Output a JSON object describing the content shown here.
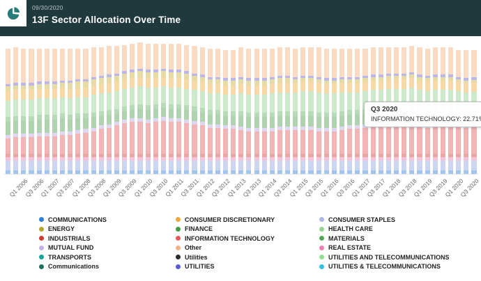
{
  "header": {
    "date": "09/30/2020",
    "title": "13F Sector Allocation Over Time"
  },
  "tooltip": {
    "title": "Q3 2020",
    "line": "INFORMATION TECHNOLOGY: 22.71%"
  },
  "colors": {
    "header_bg": "#20393d",
    "accent_teal": "#2a7c7c"
  },
  "legend": {
    "position": "bottom",
    "items": [
      {
        "label": "COMMUNICATIONS",
        "color": "#2f7ed8"
      },
      {
        "label": "ENERGY",
        "color": "#b8a432"
      },
      {
        "label": "INDUSTRIALS",
        "color": "#cc3b33"
      },
      {
        "label": "MUTUAL FUND",
        "color": "#c3b1e1"
      },
      {
        "label": "TRANSPORTS",
        "color": "#18a39b"
      },
      {
        "label": "Communications",
        "color": "#1d6f5e"
      },
      {
        "label": "CONSUMER DISCRETIONARY",
        "color": "#efa93c"
      },
      {
        "label": "FINANCE",
        "color": "#3f9e3f"
      },
      {
        "label": "INFORMATION TECHNOLOGY",
        "color": "#e3595c"
      },
      {
        "label": "Other",
        "color": "#f4b183"
      },
      {
        "label": "Utilities",
        "color": "#2b2b2b"
      },
      {
        "label": "UTILITIES",
        "color": "#5b5bd6"
      },
      {
        "label": "CONSUMER STAPLES",
        "color": "#aab9e8"
      },
      {
        "label": "HEALTH CARE",
        "color": "#93d693"
      },
      {
        "label": "MATERIALS",
        "color": "#54a854"
      },
      {
        "label": "REAL ESTATE",
        "color": "#ef7fb2"
      },
      {
        "label": "UTILITIES AND TELECOMMUNICATIONS",
        "color": "#8fe08f"
      },
      {
        "label": "UTILITIES & TELECOMMUNICATIONS",
        "color": "#2fc1e0"
      }
    ]
  },
  "chart_data": {
    "type": "bar",
    "stacked": true,
    "unit": "percent",
    "ylim": [
      0,
      100
    ],
    "grid": false,
    "legend_position": "bottom",
    "title": "13F Sector Allocation Over Time",
    "xlabel": "",
    "ylabel": "",
    "highlight": {
      "category": "Q3 2020",
      "series": "INFORMATION TECHNOLOGY",
      "value": 22.71
    },
    "categories": [
      "Q3 2005",
      "Q4 2005",
      "Q1 2006",
      "Q2 2006",
      "Q3 2006",
      "Q4 2006",
      "Q1 2007",
      "Q2 2007",
      "Q3 2007",
      "Q4 2007",
      "Q1 2008",
      "Q2 2008",
      "Q3 2008",
      "Q4 2008",
      "Q1 2009",
      "Q2 2009",
      "Q3 2009",
      "Q4 2009",
      "Q1 2010",
      "Q2 2010",
      "Q3 2010",
      "Q4 2010",
      "Q1 2011",
      "Q2 2011",
      "Q3 2011",
      "Q4 2011",
      "Q1 2012",
      "Q2 2012",
      "Q3 2012",
      "Q4 2012",
      "Q1 2013",
      "Q2 2013",
      "Q3 2013",
      "Q4 2013",
      "Q1 2014",
      "Q2 2014",
      "Q3 2014",
      "Q4 2014",
      "Q1 2015",
      "Q2 2015",
      "Q3 2015",
      "Q4 2015",
      "Q1 2016",
      "Q2 2016",
      "Q3 2016",
      "Q4 2016",
      "Q1 2017",
      "Q2 2017",
      "Q3 2017",
      "Q4 2017",
      "Q1 2018",
      "Q2 2018",
      "Q3 2018",
      "Q4 2018",
      "Q1 2019",
      "Q2 2019",
      "Q3 2019",
      "Q4 2019",
      "Q1 2020",
      "Q2 2020",
      "Q3 2020"
    ],
    "x_tick_labels": [
      "Q1 2006",
      "Q3 2006",
      "Q1 2007",
      "Q3 2007",
      "Q1 2008",
      "Q3 2008",
      "Q1 2009",
      "Q3 2009",
      "Q1 2010",
      "Q3 2010",
      "Q1 2011",
      "Q3 2011",
      "Q1 2012",
      "Q3 2012",
      "Q1 2013",
      "Q3 2013",
      "Q1 2014",
      "Q3 2014",
      "Q1 2015",
      "Q3 2015",
      "Q1 2016",
      "Q3 2016",
      "Q1 2017",
      "Q3 2017",
      "Q1 2018",
      "Q3 2018",
      "Q1 2019",
      "Q3 2019",
      "Q1 2020",
      "Q3 2020"
    ],
    "series": [
      {
        "name": "COMMUNICATIONS",
        "color": "#2f7ed8",
        "constant": 3
      },
      {
        "name": "CONSUMER STAPLES",
        "color": "#8fa3e0",
        "constant": 8
      },
      {
        "name": "REAL ESTATE",
        "color": "#e87ab0",
        "constant": 3
      },
      {
        "name": "INDUSTRIALS",
        "color": "#cc4037",
        "constant": 3
      },
      {
        "name": "INFORMATION TECHNOLOGY",
        "color": "#e3595c",
        "values": [
          13,
          14,
          14,
          14,
          15,
          15,
          15,
          16,
          16,
          17,
          18,
          19,
          21,
          22,
          24,
          26,
          27,
          27,
          26,
          27,
          28,
          27,
          27,
          26,
          25,
          24,
          22,
          22,
          21,
          21,
          20,
          19,
          19,
          19,
          19,
          20,
          20,
          20,
          20,
          20,
          19,
          19,
          19,
          20,
          21,
          21,
          22,
          23,
          23,
          24,
          24,
          24,
          25,
          23,
          22,
          23,
          23,
          23,
          23,
          22,
          22.71
        ]
      },
      {
        "name": "MUTUAL FUND",
        "color": "#b9a6e0",
        "constant": 3
      },
      {
        "name": "FINANCE",
        "color": "#4d9e4d",
        "values": [
          11,
          11,
          11,
          11,
          11,
          11,
          11,
          11,
          10,
          10,
          9,
          9,
          8,
          8,
          7,
          7,
          7,
          8,
          8,
          8,
          8,
          8,
          8,
          8,
          8,
          8,
          8,
          8,
          8,
          8,
          9,
          9,
          9,
          9,
          9,
          9,
          9,
          9,
          9,
          9,
          9,
          9,
          9,
          9,
          9,
          9,
          9,
          9,
          9,
          9,
          9,
          9,
          9,
          9,
          9,
          9,
          9,
          9,
          8,
          8,
          8
        ]
      },
      {
        "name": "MATERIALS",
        "color": "#5fae5f",
        "constant": 4
      },
      {
        "name": "HEALTH CARE",
        "color": "#8ecf8e",
        "values": [
          14,
          14,
          14,
          14,
          14,
          14,
          14,
          14,
          14,
          14,
          14,
          15,
          15,
          15,
          15,
          15,
          15,
          15,
          15,
          14,
          14,
          14,
          14,
          14,
          14,
          14,
          14,
          14,
          14,
          14,
          15,
          15,
          15,
          15,
          16,
          16,
          16,
          16,
          17,
          17,
          17,
          16,
          16,
          16,
          15,
          15,
          15,
          15,
          15,
          15,
          15,
          15,
          15,
          15,
          15,
          15,
          15,
          15,
          15,
          15,
          15
        ]
      },
      {
        "name": "CONSUMER DISCRETIONARY",
        "color": "#efa93c",
        "constant": 8
      },
      {
        "name": "ENERGY",
        "color": "#c9b037",
        "values": [
          4,
          4,
          4,
          4,
          4,
          4,
          4,
          4,
          5,
          5,
          5,
          5,
          5,
          5,
          5,
          5,
          5,
          5,
          5,
          5,
          5,
          5,
          5,
          5,
          4,
          4,
          4,
          4,
          4,
          4,
          4,
          4,
          4,
          4,
          4,
          4,
          4,
          3,
          3,
          3,
          3,
          3,
          3,
          3,
          3,
          3,
          3,
          3,
          3,
          3,
          3,
          3,
          3,
          3,
          3,
          3,
          3,
          3,
          2,
          2,
          2
        ]
      },
      {
        "name": "UTILITIES",
        "color": "#6a5fd0",
        "constant": 2
      },
      {
        "name": "Other",
        "color": "#f2b079",
        "values": [
          30,
          30,
          29,
          29,
          28,
          28,
          28,
          27,
          27,
          26,
          26,
          25,
          24,
          24,
          23,
          22,
          22,
          22,
          22,
          22,
          21,
          22,
          22,
          22,
          23,
          23,
          24,
          24,
          24,
          24,
          25,
          25,
          25,
          25,
          24,
          24,
          24,
          24,
          24,
          24,
          25,
          25,
          25,
          24,
          24,
          24,
          23,
          23,
          23,
          22,
          22,
          22,
          22,
          23,
          23,
          23,
          23,
          23,
          23,
          24,
          23
        ]
      }
    ]
  }
}
